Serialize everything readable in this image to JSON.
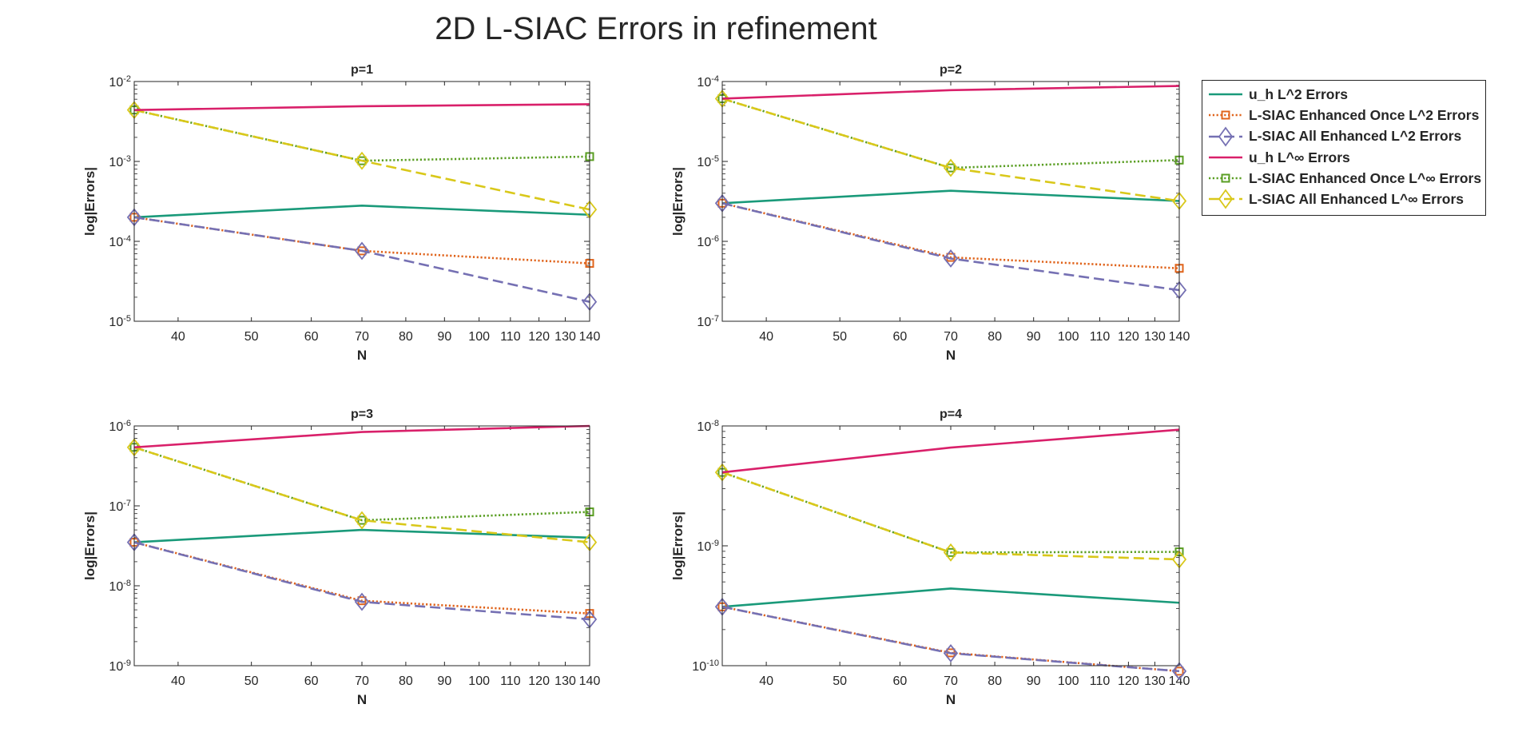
{
  "figure": {
    "title": "2D L-SIAC Errors in refinement"
  },
  "legend": {
    "entries": [
      {
        "key": "uh_l2",
        "label": "u_h L^2 Errors",
        "color": "#1a9a7a",
        "dash": "solid",
        "marker": "none"
      },
      {
        "key": "once_l2",
        "label": "L-SIAC Enhanced Once L^2 Errors",
        "color": "#e0641c",
        "dash": "dotted",
        "marker": "square"
      },
      {
        "key": "all_l2",
        "label": "L-SIAC All Enhanced L^2 Errors",
        "color": "#7570b3",
        "dash": "dashed",
        "marker": "diamond"
      },
      {
        "key": "uh_linf",
        "label": "u_h L^∞ Errors",
        "color": "#d9206a",
        "dash": "solid",
        "marker": "none"
      },
      {
        "key": "once_linf",
        "label": "L-SIAC Enhanced Once L^∞ Errors",
        "color": "#5a9e23",
        "dash": "dotted",
        "marker": "square"
      },
      {
        "key": "all_linf",
        "label": "L-SIAC All Enhanced L^∞ Errors",
        "color": "#d9c81a",
        "dash": "dashed",
        "marker": "diamond"
      }
    ]
  },
  "chart_data": [
    {
      "type": "line",
      "title": "p=1",
      "xlabel": "N",
      "ylabel": "log|Errors|",
      "xscale": "log",
      "yscale": "log",
      "xlim": [
        35,
        140
      ],
      "ylim_exp": [
        -5,
        -2
      ],
      "xticks": [
        40,
        50,
        60,
        70,
        80,
        90,
        100,
        110,
        120,
        130,
        140
      ],
      "x": [
        35,
        70,
        140
      ],
      "series": [
        {
          "key": "uh_l2",
          "values": [
            0.0002,
            0.00028,
            0.000215
          ]
        },
        {
          "key": "once_l2",
          "values": [
            0.0002,
            7.6e-05,
            5.3e-05
          ]
        },
        {
          "key": "all_l2",
          "values": [
            0.0002,
            7.6e-05,
            1.75e-05
          ]
        },
        {
          "key": "uh_linf",
          "values": [
            0.0044,
            0.0049,
            0.0052
          ]
        },
        {
          "key": "once_linf",
          "values": [
            0.0044,
            0.00102,
            0.00115
          ]
        },
        {
          "key": "all_linf",
          "values": [
            0.0044,
            0.00102,
            0.00025
          ]
        }
      ]
    },
    {
      "type": "line",
      "title": "p=2",
      "xlabel": "N",
      "ylabel": "log|Errors|",
      "xscale": "log",
      "yscale": "log",
      "xlim": [
        35,
        140
      ],
      "ylim_exp": [
        -7,
        -4
      ],
      "xticks": [
        40,
        50,
        60,
        70,
        80,
        90,
        100,
        110,
        120,
        130,
        140
      ],
      "x": [
        35,
        70,
        140
      ],
      "series": [
        {
          "key": "uh_l2",
          "values": [
            3e-06,
            4.3e-06,
            3.2e-06
          ]
        },
        {
          "key": "once_l2",
          "values": [
            3e-06,
            6.3e-07,
            4.6e-07
          ]
        },
        {
          "key": "all_l2",
          "values": [
            3e-06,
            6.1e-07,
            2.45e-07
          ]
        },
        {
          "key": "uh_linf",
          "values": [
            6.1e-05,
            7.8e-05,
            8.8e-05
          ]
        },
        {
          "key": "once_linf",
          "values": [
            6.1e-05,
            8.3e-06,
            1.04e-05
          ]
        },
        {
          "key": "all_linf",
          "values": [
            6.1e-05,
            8.3e-06,
            3.2e-06
          ]
        }
      ]
    },
    {
      "type": "line",
      "title": "p=3",
      "xlabel": "N",
      "ylabel": "log|Errors|",
      "xscale": "log",
      "yscale": "log",
      "xlim": [
        35,
        140
      ],
      "ylim_exp": [
        -9,
        -6
      ],
      "xticks": [
        40,
        50,
        60,
        70,
        80,
        90,
        100,
        110,
        120,
        130,
        140
      ],
      "x": [
        35,
        70,
        140
      ],
      "series": [
        {
          "key": "uh_l2",
          "values": [
            3.5e-08,
            5e-08,
            4e-08
          ]
        },
        {
          "key": "once_l2",
          "values": [
            3.5e-08,
            6.5e-09,
            4.5e-09
          ]
        },
        {
          "key": "all_l2",
          "values": [
            3.5e-08,
            6.3e-09,
            3.8e-09
          ]
        },
        {
          "key": "uh_linf",
          "values": [
            5.4e-07,
            8.4e-07,
            1e-06
          ]
        },
        {
          "key": "once_linf",
          "values": [
            5.4e-07,
            6.6e-08,
            8.4e-08
          ]
        },
        {
          "key": "all_linf",
          "values": [
            5.4e-07,
            6.6e-08,
            3.5e-08
          ]
        }
      ]
    },
    {
      "type": "line",
      "title": "p=4",
      "xlabel": "N",
      "ylabel": "log|Errors|",
      "xscale": "log",
      "yscale": "log",
      "xlim": [
        35,
        140
      ],
      "ylim_exp": [
        -10,
        -8
      ],
      "xticks": [
        40,
        50,
        60,
        70,
        80,
        90,
        100,
        110,
        120,
        130,
        140
      ],
      "x": [
        35,
        70,
        140
      ],
      "series": [
        {
          "key": "uh_l2",
          "values": [
            3.1e-10,
            4.4e-10,
            3.35e-10
          ]
        },
        {
          "key": "once_l2",
          "values": [
            3.1e-10,
            1.28e-10,
            9e-11
          ]
        },
        {
          "key": "all_l2",
          "values": [
            3.1e-10,
            1.27e-10,
            9e-11
          ]
        },
        {
          "key": "uh_linf",
          "values": [
            4.1e-09,
            6.6e-09,
            9.3e-09
          ]
        },
        {
          "key": "once_linf",
          "values": [
            4.1e-09,
            8.8e-10,
            8.9e-10
          ]
        },
        {
          "key": "all_linf",
          "values": [
            4.1e-09,
            8.8e-10,
            7.7e-10
          ]
        }
      ]
    }
  ]
}
